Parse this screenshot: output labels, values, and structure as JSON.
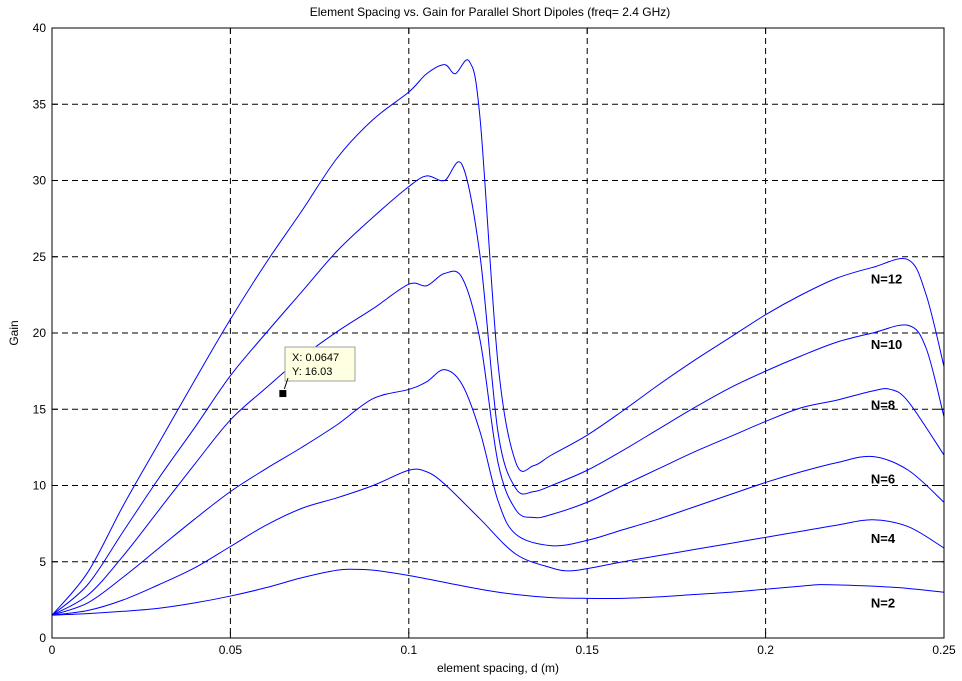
{
  "chart_data": {
    "type": "line",
    "title": "Element Spacing vs. Gain for Parallel Short Dipoles (freq= 2.4 GHz)",
    "xlabel": "element spacing, d (m)",
    "ylabel": "Gain",
    "xlim": [
      0,
      0.25
    ],
    "ylim": [
      0,
      40
    ],
    "xticks": [
      "0",
      "0.05",
      "0.1",
      "0.15",
      "0.2",
      "0.25"
    ],
    "yticks": [
      "0",
      "5",
      "10",
      "15",
      "20",
      "25",
      "30",
      "35",
      "40"
    ],
    "grid": true,
    "line_color": "#0000ff",
    "series": [
      {
        "name": "N=2",
        "points": [
          [
            0,
            1.5
          ],
          [
            0.01,
            1.6
          ],
          [
            0.02,
            1.75
          ],
          [
            0.03,
            1.95
          ],
          [
            0.04,
            2.3
          ],
          [
            0.05,
            2.75
          ],
          [
            0.06,
            3.3
          ],
          [
            0.07,
            3.95
          ],
          [
            0.08,
            4.45
          ],
          [
            0.085,
            4.5
          ],
          [
            0.09,
            4.45
          ],
          [
            0.1,
            4.1
          ],
          [
            0.11,
            3.65
          ],
          [
            0.12,
            3.2
          ],
          [
            0.13,
            2.85
          ],
          [
            0.14,
            2.65
          ],
          [
            0.15,
            2.6
          ],
          [
            0.16,
            2.6
          ],
          [
            0.17,
            2.7
          ],
          [
            0.18,
            2.85
          ],
          [
            0.19,
            3.0
          ],
          [
            0.2,
            3.2
          ],
          [
            0.21,
            3.4
          ],
          [
            0.215,
            3.5
          ],
          [
            0.22,
            3.48
          ],
          [
            0.23,
            3.4
          ],
          [
            0.24,
            3.25
          ],
          [
            0.25,
            3.0
          ]
        ]
      },
      {
        "name": "N=4",
        "points": [
          [
            0,
            1.5
          ],
          [
            0.01,
            1.8
          ],
          [
            0.02,
            2.5
          ],
          [
            0.03,
            3.5
          ],
          [
            0.04,
            4.6
          ],
          [
            0.05,
            6.0
          ],
          [
            0.06,
            7.4
          ],
          [
            0.07,
            8.5
          ],
          [
            0.08,
            9.2
          ],
          [
            0.09,
            10.0
          ],
          [
            0.1,
            11.0
          ],
          [
            0.105,
            10.9
          ],
          [
            0.11,
            10.1
          ],
          [
            0.12,
            7.8
          ],
          [
            0.13,
            5.5
          ],
          [
            0.14,
            4.6
          ],
          [
            0.145,
            4.4
          ],
          [
            0.15,
            4.55
          ],
          [
            0.16,
            5.0
          ],
          [
            0.17,
            5.4
          ],
          [
            0.18,
            5.8
          ],
          [
            0.19,
            6.2
          ],
          [
            0.2,
            6.6
          ],
          [
            0.21,
            7.0
          ],
          [
            0.22,
            7.4
          ],
          [
            0.23,
            7.75
          ],
          [
            0.24,
            7.3
          ],
          [
            0.25,
            5.9
          ]
        ]
      },
      {
        "name": "N=6",
        "points": [
          [
            0,
            1.5
          ],
          [
            0.01,
            2.3
          ],
          [
            0.02,
            4.0
          ],
          [
            0.03,
            5.9
          ],
          [
            0.04,
            7.8
          ],
          [
            0.05,
            9.6
          ],
          [
            0.06,
            11.1
          ],
          [
            0.07,
            12.5
          ],
          [
            0.08,
            14.0
          ],
          [
            0.09,
            15.7
          ],
          [
            0.1,
            16.3
          ],
          [
            0.105,
            16.8
          ],
          [
            0.11,
            17.6
          ],
          [
            0.115,
            16.6
          ],
          [
            0.12,
            13.5
          ],
          [
            0.125,
            9.0
          ],
          [
            0.13,
            6.8
          ],
          [
            0.14,
            6.05
          ],
          [
            0.15,
            6.4
          ],
          [
            0.16,
            7.1
          ],
          [
            0.17,
            7.8
          ],
          [
            0.18,
            8.6
          ],
          [
            0.19,
            9.4
          ],
          [
            0.2,
            10.2
          ],
          [
            0.21,
            10.9
          ],
          [
            0.22,
            11.5
          ],
          [
            0.23,
            11.9
          ],
          [
            0.24,
            11.0
          ],
          [
            0.25,
            8.9
          ]
        ]
      },
      {
        "name": "N=8",
        "points": [
          [
            0,
            1.5
          ],
          [
            0.01,
            2.8
          ],
          [
            0.02,
            5.4
          ],
          [
            0.03,
            8.4
          ],
          [
            0.04,
            11.4
          ],
          [
            0.05,
            14.3
          ],
          [
            0.06,
            16.4
          ],
          [
            0.07,
            18.4
          ],
          [
            0.08,
            20.1
          ],
          [
            0.09,
            21.6
          ],
          [
            0.1,
            23.2
          ],
          [
            0.105,
            23.1
          ],
          [
            0.11,
            23.9
          ],
          [
            0.115,
            23.6
          ],
          [
            0.12,
            19.5
          ],
          [
            0.125,
            11.5
          ],
          [
            0.13,
            8.4
          ],
          [
            0.135,
            7.9
          ],
          [
            0.14,
            8.1
          ],
          [
            0.15,
            8.9
          ],
          [
            0.16,
            10.0
          ],
          [
            0.17,
            11.1
          ],
          [
            0.18,
            12.2
          ],
          [
            0.19,
            13.2
          ],
          [
            0.2,
            14.2
          ],
          [
            0.21,
            15.1
          ],
          [
            0.22,
            15.6
          ],
          [
            0.23,
            16.2
          ],
          [
            0.235,
            16.3
          ],
          [
            0.24,
            15.5
          ],
          [
            0.25,
            12.0
          ]
        ]
      },
      {
        "name": "N=10",
        "points": [
          [
            0,
            1.5
          ],
          [
            0.01,
            3.5
          ],
          [
            0.02,
            7.0
          ],
          [
            0.03,
            10.5
          ],
          [
            0.04,
            13.8
          ],
          [
            0.05,
            17.2
          ],
          [
            0.06,
            20.0
          ],
          [
            0.07,
            22.7
          ],
          [
            0.08,
            25.4
          ],
          [
            0.09,
            27.6
          ],
          [
            0.1,
            29.6
          ],
          [
            0.105,
            30.3
          ],
          [
            0.11,
            30.0
          ],
          [
            0.115,
            31.0
          ],
          [
            0.12,
            25.0
          ],
          [
            0.125,
            13.5
          ],
          [
            0.13,
            9.8
          ],
          [
            0.135,
            9.6
          ],
          [
            0.14,
            10.0
          ],
          [
            0.15,
            11.0
          ],
          [
            0.16,
            12.3
          ],
          [
            0.17,
            13.7
          ],
          [
            0.18,
            15.1
          ],
          [
            0.19,
            16.4
          ],
          [
            0.2,
            17.5
          ],
          [
            0.21,
            18.5
          ],
          [
            0.22,
            19.4
          ],
          [
            0.23,
            20.0
          ],
          [
            0.24,
            20.5
          ],
          [
            0.245,
            19.0
          ],
          [
            0.25,
            14.5
          ]
        ]
      },
      {
        "name": "N=12",
        "points": [
          [
            0,
            1.5
          ],
          [
            0.01,
            4.3
          ],
          [
            0.02,
            8.7
          ],
          [
            0.03,
            12.8
          ],
          [
            0.04,
            16.9
          ],
          [
            0.05,
            20.9
          ],
          [
            0.06,
            24.6
          ],
          [
            0.07,
            28.0
          ],
          [
            0.08,
            31.5
          ],
          [
            0.09,
            34.0
          ],
          [
            0.1,
            35.8
          ],
          [
            0.105,
            37.0
          ],
          [
            0.11,
            37.6
          ],
          [
            0.113,
            37.0
          ],
          [
            0.117,
            37.8
          ],
          [
            0.12,
            34.0
          ],
          [
            0.125,
            18.0
          ],
          [
            0.13,
            11.5
          ],
          [
            0.135,
            11.3
          ],
          [
            0.14,
            12.0
          ],
          [
            0.15,
            13.3
          ],
          [
            0.16,
            14.9
          ],
          [
            0.17,
            16.6
          ],
          [
            0.18,
            18.2
          ],
          [
            0.19,
            19.7
          ],
          [
            0.2,
            21.2
          ],
          [
            0.21,
            22.5
          ],
          [
            0.22,
            23.6
          ],
          [
            0.23,
            24.3
          ],
          [
            0.24,
            24.8
          ],
          [
            0.245,
            22.5
          ],
          [
            0.25,
            17.8
          ]
        ]
      }
    ],
    "datatip": {
      "x_label": "X: 0.0647",
      "y_label": "Y: 16.03",
      "x": 0.0647,
      "y": 16.03
    }
  }
}
